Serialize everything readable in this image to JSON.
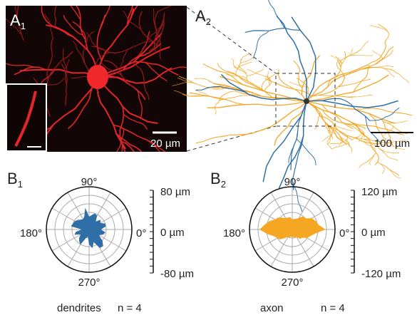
{
  "panels": {
    "A1": {
      "label": "A",
      "subscript": "1",
      "scale_bar": "20 µm"
    },
    "A2": {
      "label": "A",
      "subscript": "2",
      "scale_bar": "100 µm"
    },
    "B1": {
      "label": "B",
      "subscript": "1",
      "angle_90": "90°",
      "angle_180": "180°",
      "angle_0": "0°",
      "angle_270": "270°",
      "scale_top": "80 µm",
      "scale_mid": "0 µm",
      "scale_bottom": "-80 µm",
      "caption": "dendrites",
      "n": "n = 4"
    },
    "B2": {
      "label": "B",
      "subscript": "2",
      "angle_90": "90°",
      "angle_180": "180°",
      "angle_0": "0°",
      "angle_270": "270°",
      "scale_top": "120 µm",
      "scale_mid": "0 µm",
      "scale_bottom": "-120 µm",
      "caption": "axon",
      "n": "n = 4"
    }
  }
}
